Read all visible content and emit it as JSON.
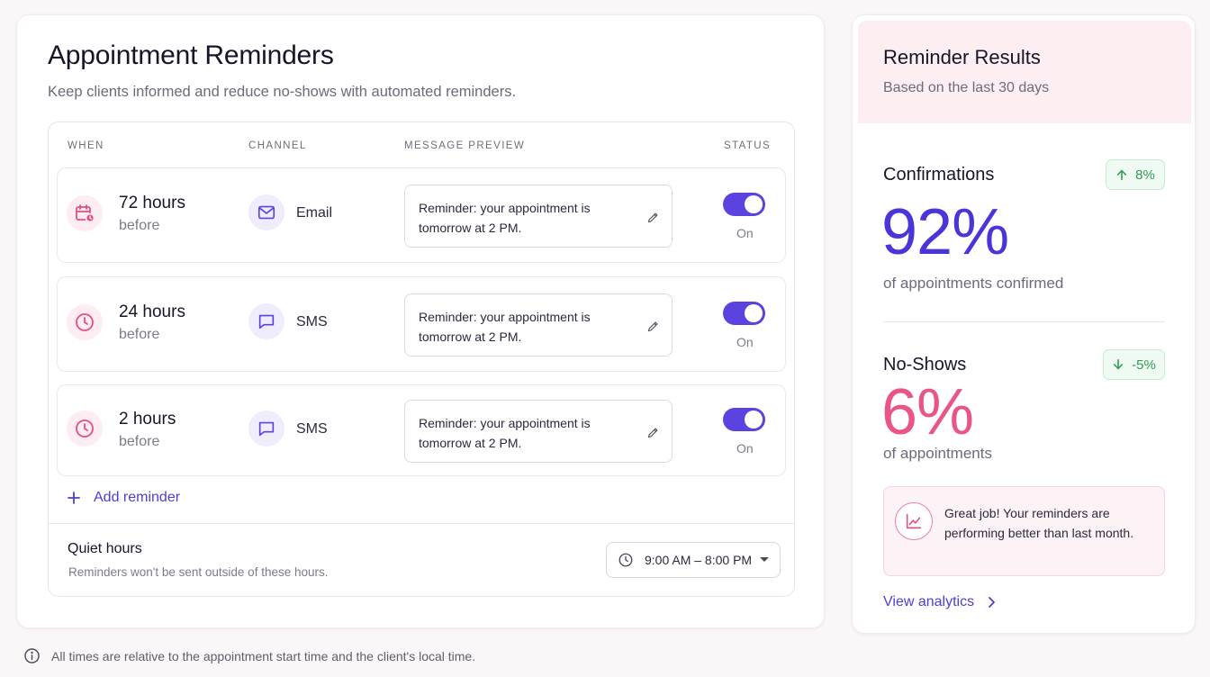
{
  "main": {
    "title": "Appointment Reminders",
    "subtitle": "Keep clients informed and reduce no-shows with automated reminders.",
    "columns": {
      "when": "WHEN",
      "channel": "CHANNEL",
      "preview": "MESSAGE PREVIEW",
      "status": "STATUS"
    },
    "reminders": [
      {
        "when": "72 hours",
        "when_sub": "before",
        "when_icon": "calendar-clock-icon",
        "channel": "Email",
        "channel_icon": "mail-icon",
        "preview": "Reminder: your appointment is tomorrow at 2 PM.",
        "status": "On",
        "enabled": true
      },
      {
        "when": "24 hours",
        "when_sub": "before",
        "when_icon": "clock-icon",
        "channel": "SMS",
        "channel_icon": "chat-bubble-icon",
        "preview": "Reminder: your appointment is tomorrow at 2 PM.",
        "status": "On",
        "enabled": true
      },
      {
        "when": "2 hours",
        "when_sub": "before",
        "when_icon": "clock-icon",
        "channel": "SMS",
        "channel_icon": "chat-bubble-icon",
        "preview": "Reminder: your appointment is tomorrow at 2 PM.",
        "status": "On",
        "enabled": true
      }
    ],
    "add_reminder": "Add reminder",
    "quiet_hours": {
      "title": "Quiet hours",
      "subtitle": "Reminders won't be sent outside of these hours.",
      "value": "9:00 AM – 8:00 PM"
    },
    "footer_note": "All times are relative to the appointment start time and the client's local time."
  },
  "side": {
    "title": "Reminder Results",
    "subtitle": "Based on the last 30 days",
    "confirmations": {
      "label": "Confirmations",
      "change": "8%",
      "value": "92%",
      "caption": "of appointments confirmed"
    },
    "no_shows": {
      "label": "No-Shows",
      "change": "-5%",
      "value": "6%",
      "caption": "of appointments"
    },
    "callout": "Great job! Your reminders are performing better than last month.",
    "view_analytics": "View analytics"
  },
  "colors": {
    "accent": "#5b43e0",
    "confirm_value": "#4a35d8",
    "noshow_value": "#ea5587",
    "positive": "#2f9a55",
    "pink_bg": "#fdeef2"
  }
}
